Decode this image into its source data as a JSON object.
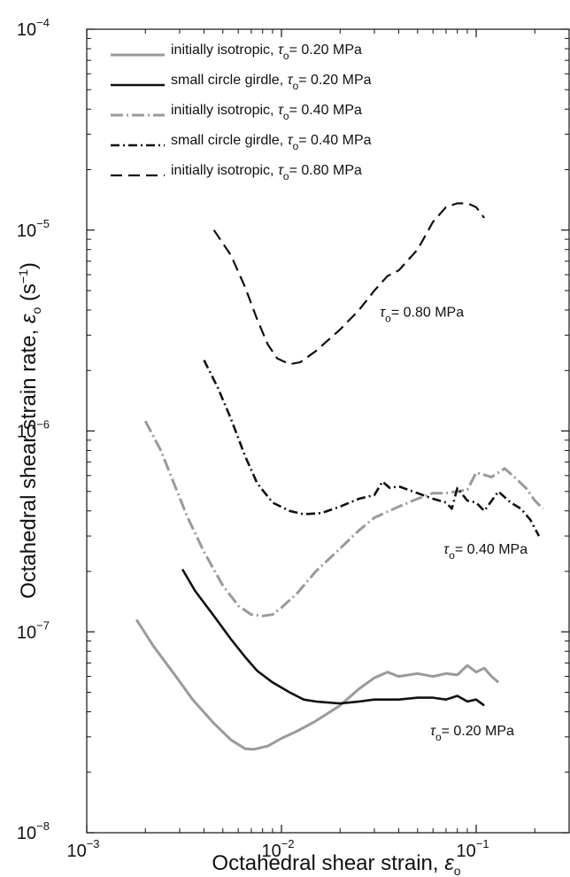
{
  "chart_data": {
    "type": "line",
    "xlabel": "Octahedral shear strain,",
    "xlabel_symbol": "ε",
    "xlabel_sub": "o",
    "ylabel": "Octahedral shear strain rate,",
    "ylabel_symbol": "ε",
    "ylabel_sub": "o",
    "ylabel_unit": "(s",
    "ylabel_unit_exp": "−1",
    "ylabel_unit_close": ")",
    "x_scale": "log",
    "y_scale": "log",
    "xlim": [
      0.001,
      0.3
    ],
    "ylim": [
      1e-08,
      0.0001
    ],
    "grid": false,
    "legend_position": "top-left",
    "x_ticks": [
      {
        "value": 0.001,
        "base": "10",
        "exp": "−3"
      },
      {
        "value": 0.01,
        "base": "10",
        "exp": "−2"
      },
      {
        "value": 0.1,
        "base": "10",
        "exp": "−1"
      }
    ],
    "y_ticks": [
      {
        "value": 1e-08,
        "base": "10",
        "exp": "−8"
      },
      {
        "value": 1e-07,
        "base": "10",
        "exp": "−7"
      },
      {
        "value": 1e-06,
        "base": "10",
        "exp": "−6"
      },
      {
        "value": 1e-05,
        "base": "10",
        "exp": "−5"
      },
      {
        "value": 0.0001,
        "base": "10",
        "exp": "−4"
      }
    ],
    "legend_symbol": "τ",
    "legend_symbol_sub": "o",
    "series": [
      {
        "name": "initially isotropic, τo = 0.20 MPa",
        "legend_prefix": "initially isotropic,",
        "legend_value": "= 0.20 MPa",
        "color": "#9a9a9a",
        "width": 3,
        "dash": "",
        "points": [
          [
            0.0018,
            1.15e-07
          ],
          [
            0.0022,
            8.5e-08
          ],
          [
            0.0028,
            6.2e-08
          ],
          [
            0.0035,
            4.6e-08
          ],
          [
            0.0045,
            3.5e-08
          ],
          [
            0.0055,
            2.9e-08
          ],
          [
            0.0065,
            2.62e-08
          ],
          [
            0.0072,
            2.6e-08
          ],
          [
            0.0085,
            2.7e-08
          ],
          [
            0.01,
            2.95e-08
          ],
          [
            0.012,
            3.2e-08
          ],
          [
            0.015,
            3.6e-08
          ],
          [
            0.02,
            4.3e-08
          ],
          [
            0.025,
            5.2e-08
          ],
          [
            0.03,
            5.9e-08
          ],
          [
            0.035,
            6.3e-08
          ],
          [
            0.04,
            6e-08
          ],
          [
            0.05,
            6.2e-08
          ],
          [
            0.06,
            6e-08
          ],
          [
            0.07,
            6.2e-08
          ],
          [
            0.08,
            6.1e-08
          ],
          [
            0.09,
            6.8e-08
          ],
          [
            0.1,
            6.3e-08
          ],
          [
            0.11,
            6.6e-08
          ],
          [
            0.12,
            6e-08
          ],
          [
            0.13,
            5.6e-08
          ]
        ]
      },
      {
        "name": "small circle girdle, τo = 0.20 MPa",
        "legend_prefix": "small circle girdle,",
        "legend_value": "= 0.20 MPa",
        "color": "#111111",
        "width": 2.6,
        "dash": "",
        "points": [
          [
            0.0031,
            2.05e-07
          ],
          [
            0.0036,
            1.6e-07
          ],
          [
            0.0045,
            1.2e-07
          ],
          [
            0.0055,
            9.2e-08
          ],
          [
            0.0065,
            7.5e-08
          ],
          [
            0.0075,
            6.4e-08
          ],
          [
            0.009,
            5.6e-08
          ],
          [
            0.011,
            5e-08
          ],
          [
            0.013,
            4.6e-08
          ],
          [
            0.015,
            4.5e-08
          ],
          [
            0.02,
            4.4e-08
          ],
          [
            0.025,
            4.5e-08
          ],
          [
            0.03,
            4.6e-08
          ],
          [
            0.04,
            4.6e-08
          ],
          [
            0.05,
            4.7e-08
          ],
          [
            0.06,
            4.7e-08
          ],
          [
            0.07,
            4.6e-08
          ],
          [
            0.08,
            4.8e-08
          ],
          [
            0.09,
            4.5e-08
          ],
          [
            0.1,
            4.6e-08
          ],
          [
            0.11,
            4.3e-08
          ]
        ]
      },
      {
        "name": "initially isotropic, τo = 0.40 MPa",
        "legend_prefix": "initially isotropic,",
        "legend_value": "= 0.40 MPa",
        "color": "#9a9a9a",
        "width": 3,
        "dash": "14 4 2 4",
        "points": [
          [
            0.002,
            1.12e-06
          ],
          [
            0.0024,
            8e-07
          ],
          [
            0.0028,
            5.5e-07
          ],
          [
            0.0033,
            3.7e-07
          ],
          [
            0.004,
            2.5e-07
          ],
          [
            0.005,
            1.7e-07
          ],
          [
            0.006,
            1.35e-07
          ],
          [
            0.007,
            1.22e-07
          ],
          [
            0.008,
            1.2e-07
          ],
          [
            0.009,
            1.22e-07
          ],
          [
            0.01,
            1.32e-07
          ],
          [
            0.012,
            1.55e-07
          ],
          [
            0.015,
            2e-07
          ],
          [
            0.02,
            2.6e-07
          ],
          [
            0.025,
            3.2e-07
          ],
          [
            0.03,
            3.7e-07
          ],
          [
            0.04,
            4.2e-07
          ],
          [
            0.05,
            4.6e-07
          ],
          [
            0.06,
            4.9e-07
          ],
          [
            0.07,
            4.9e-07
          ],
          [
            0.08,
            5e-07
          ],
          [
            0.09,
            5.1e-07
          ],
          [
            0.1,
            6.2e-07
          ],
          [
            0.12,
            5.9e-07
          ],
          [
            0.14,
            6.5e-07
          ],
          [
            0.16,
            5.8e-07
          ],
          [
            0.18,
            5.2e-07
          ],
          [
            0.2,
            4.5e-07
          ],
          [
            0.22,
            4.1e-07
          ]
        ]
      },
      {
        "name": "small circle girdle, τo = 0.40 MPa",
        "legend_prefix": "small circle girdle,",
        "legend_value": "= 0.40 MPa",
        "color": "#111111",
        "width": 2.6,
        "dash": "10 4 2 4",
        "points": [
          [
            0.004,
            2.25e-06
          ],
          [
            0.0047,
            1.65e-06
          ],
          [
            0.0055,
            1.15e-06
          ],
          [
            0.0065,
            7.5e-07
          ],
          [
            0.0075,
            5.5e-07
          ],
          [
            0.009,
            4.4e-07
          ],
          [
            0.011,
            4e-07
          ],
          [
            0.013,
            3.85e-07
          ],
          [
            0.016,
            3.9e-07
          ],
          [
            0.02,
            4.2e-07
          ],
          [
            0.025,
            4.6e-07
          ],
          [
            0.03,
            4.8e-07
          ],
          [
            0.033,
            5.6e-07
          ],
          [
            0.036,
            5.2e-07
          ],
          [
            0.04,
            5.3e-07
          ],
          [
            0.05,
            4.9e-07
          ],
          [
            0.06,
            4.6e-07
          ],
          [
            0.07,
            4.4e-07
          ],
          [
            0.075,
            4.1e-07
          ],
          [
            0.08,
            5.2e-07
          ],
          [
            0.09,
            4.5e-07
          ],
          [
            0.1,
            4.4e-07
          ],
          [
            0.11,
            4e-07
          ],
          [
            0.13,
            5e-07
          ],
          [
            0.15,
            4.4e-07
          ],
          [
            0.17,
            4.1e-07
          ],
          [
            0.19,
            3.6e-07
          ],
          [
            0.21,
            3e-07
          ]
        ]
      },
      {
        "name": "initially isotropic, τo = 0.80 MPa",
        "legend_prefix": "initially isotropic,",
        "legend_value": "= 0.80 MPa",
        "color": "#111111",
        "width": 2.2,
        "dash": "13 7",
        "points": [
          [
            0.0045,
            1e-05
          ],
          [
            0.0055,
            7.5e-06
          ],
          [
            0.0065,
            5.2e-06
          ],
          [
            0.0075,
            3.6e-06
          ],
          [
            0.0085,
            2.7e-06
          ],
          [
            0.0095,
            2.3e-06
          ],
          [
            0.011,
            2.15e-06
          ],
          [
            0.0125,
            2.2e-06
          ],
          [
            0.015,
            2.5e-06
          ],
          [
            0.02,
            3.2e-06
          ],
          [
            0.025,
            4e-06
          ],
          [
            0.03,
            5e-06
          ],
          [
            0.035,
            5.9e-06
          ],
          [
            0.04,
            6.3e-06
          ],
          [
            0.05,
            8e-06
          ],
          [
            0.06,
            1.1e-05
          ],
          [
            0.07,
            1.3e-05
          ],
          [
            0.08,
            1.36e-05
          ],
          [
            0.09,
            1.36e-05
          ],
          [
            0.1,
            1.3e-05
          ],
          [
            0.11,
            1.15e-05
          ]
        ]
      }
    ],
    "annotations": [
      {
        "value": "= 0.80 MPa",
        "x": 0.032,
        "y": 3.7e-06
      },
      {
        "value": "= 0.40 MPa",
        "x": 0.068,
        "y": 2.45e-07
      },
      {
        "value": "= 0.20 MPa",
        "x": 0.058,
        "y": 3.05e-08
      }
    ]
  }
}
